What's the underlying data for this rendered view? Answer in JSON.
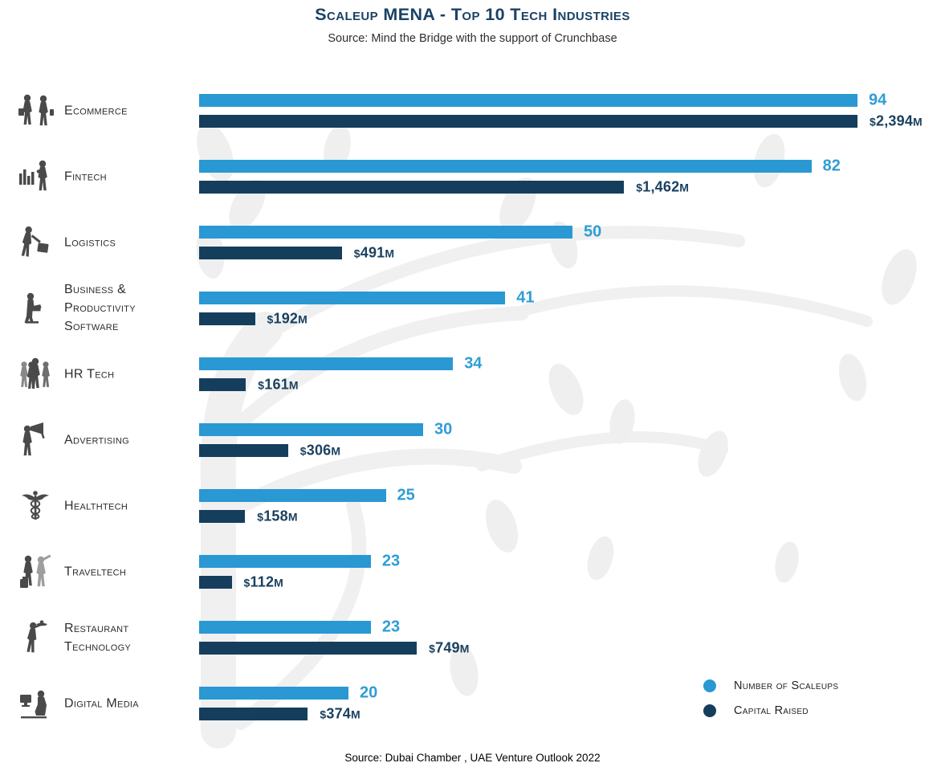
{
  "header": {
    "title": "Scaleup MENA - Top 10 Tech Industries",
    "subtitle": "Source: Mind the Bridge with the support of Crunchbase"
  },
  "footer": {
    "source": "Source: Dubai Chamber , UAE Venture Outlook 2022"
  },
  "legend": [
    {
      "label": "Number of Scaleups",
      "color": "#2998D3"
    },
    {
      "label": "Capital Raised",
      "color": "#153E5C"
    }
  ],
  "colors": {
    "scaleups_bar": "#2998D3",
    "scaleups_text": "#2F9DD6",
    "capital_bar": "#153E5C",
    "capital_text": "#1B4160",
    "title_text": "#1B4266",
    "icon_gray": "#4a4a4a",
    "watermark": "#f0f0f0"
  },
  "chart_data": {
    "type": "bar",
    "orientation": "horizontal",
    "title": "Scaleup MENA - Top 10 Tech Industries",
    "categories": [
      "Ecommerce",
      "Fintech",
      "Logistics",
      "Business & Productivity Software",
      "HR Tech",
      "Advertising",
      "Healthtech",
      "Traveltech",
      "Restaurant Technology",
      "Digital Media"
    ],
    "icons": [
      "shoppers-icon",
      "fintech-person-chart-icon",
      "logistics-porter-icon",
      "business-software-icon",
      "hr-people-icon",
      "advertising-megaphone-icon",
      "healthtech-caduceus-icon",
      "traveltech-travelers-icon",
      "restaurant-waiter-icon",
      "digital-media-icon"
    ],
    "series": [
      {
        "name": "Number of Scaleups",
        "values": [
          94,
          82,
          50,
          41,
          34,
          30,
          25,
          23,
          23,
          20
        ],
        "labels": [
          "94",
          "82",
          "50",
          "41",
          "34",
          "30",
          "25",
          "23",
          "23",
          "20"
        ]
      },
      {
        "name": "Capital Raised ($M)",
        "values": [
          2394,
          1462,
          491,
          192,
          161,
          306,
          158,
          112,
          749,
          374
        ],
        "labels": [
          "$2,394M",
          "$1,462M",
          "$491M",
          "$192M",
          "$161M",
          "$306M",
          "$158M",
          "$112M",
          "$749M",
          "$374M"
        ]
      }
    ],
    "grid": false,
    "legend_position": "bottom-right"
  }
}
